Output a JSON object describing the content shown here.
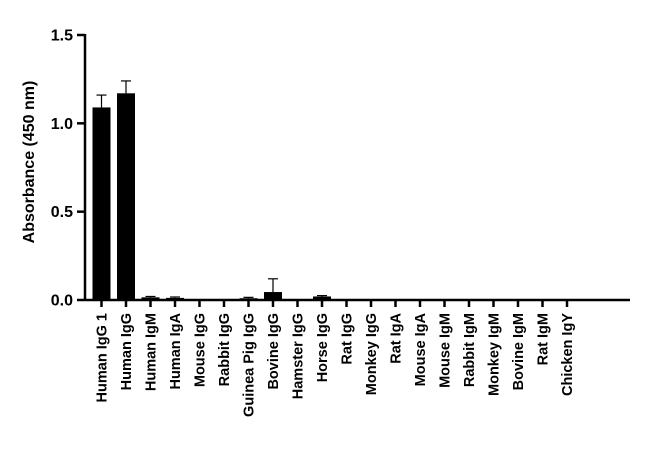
{
  "chart_data": {
    "type": "bar",
    "title": "",
    "xlabel": "",
    "ylabel": "Absorbance (450 nm)",
    "ylim": [
      0,
      1.5
    ],
    "yticks": [
      "0.0",
      "0.5",
      "1.0",
      "1.5"
    ],
    "grid": false,
    "categories": [
      "Human IgG 1",
      "Human IgG",
      "Human IgM",
      "Human IgA",
      "Mouse IgG",
      "Rabbit IgG",
      "Guinea Pig IgG",
      "Bovine IgG",
      "Hamster IgG",
      "Horse IgG",
      "Rat IgG",
      "Monkey IgG",
      "Rat IgA",
      "Mouse IgA",
      "Mouse IgM",
      "Rabbit IgM",
      "Monkey IgM",
      "Bovine IgM",
      "Rat IgM",
      "Chicken IgY"
    ],
    "values": [
      1.09,
      1.17,
      0.015,
      0.012,
      0.0,
      0.0,
      0.01,
      0.045,
      0.0,
      0.02,
      0.0,
      0.0,
      0.005,
      0.0,
      0.0,
      0.0,
      0.0,
      0.0,
      0.0,
      0.0
    ],
    "errors": [
      0.07,
      0.07,
      0.005,
      0.005,
      0.0,
      0.0,
      0.005,
      0.075,
      0.0,
      0.005,
      0.0,
      0.0,
      0.0,
      0.0,
      0.0,
      0.0,
      0.0,
      0.0,
      0.0,
      0.0
    ]
  }
}
